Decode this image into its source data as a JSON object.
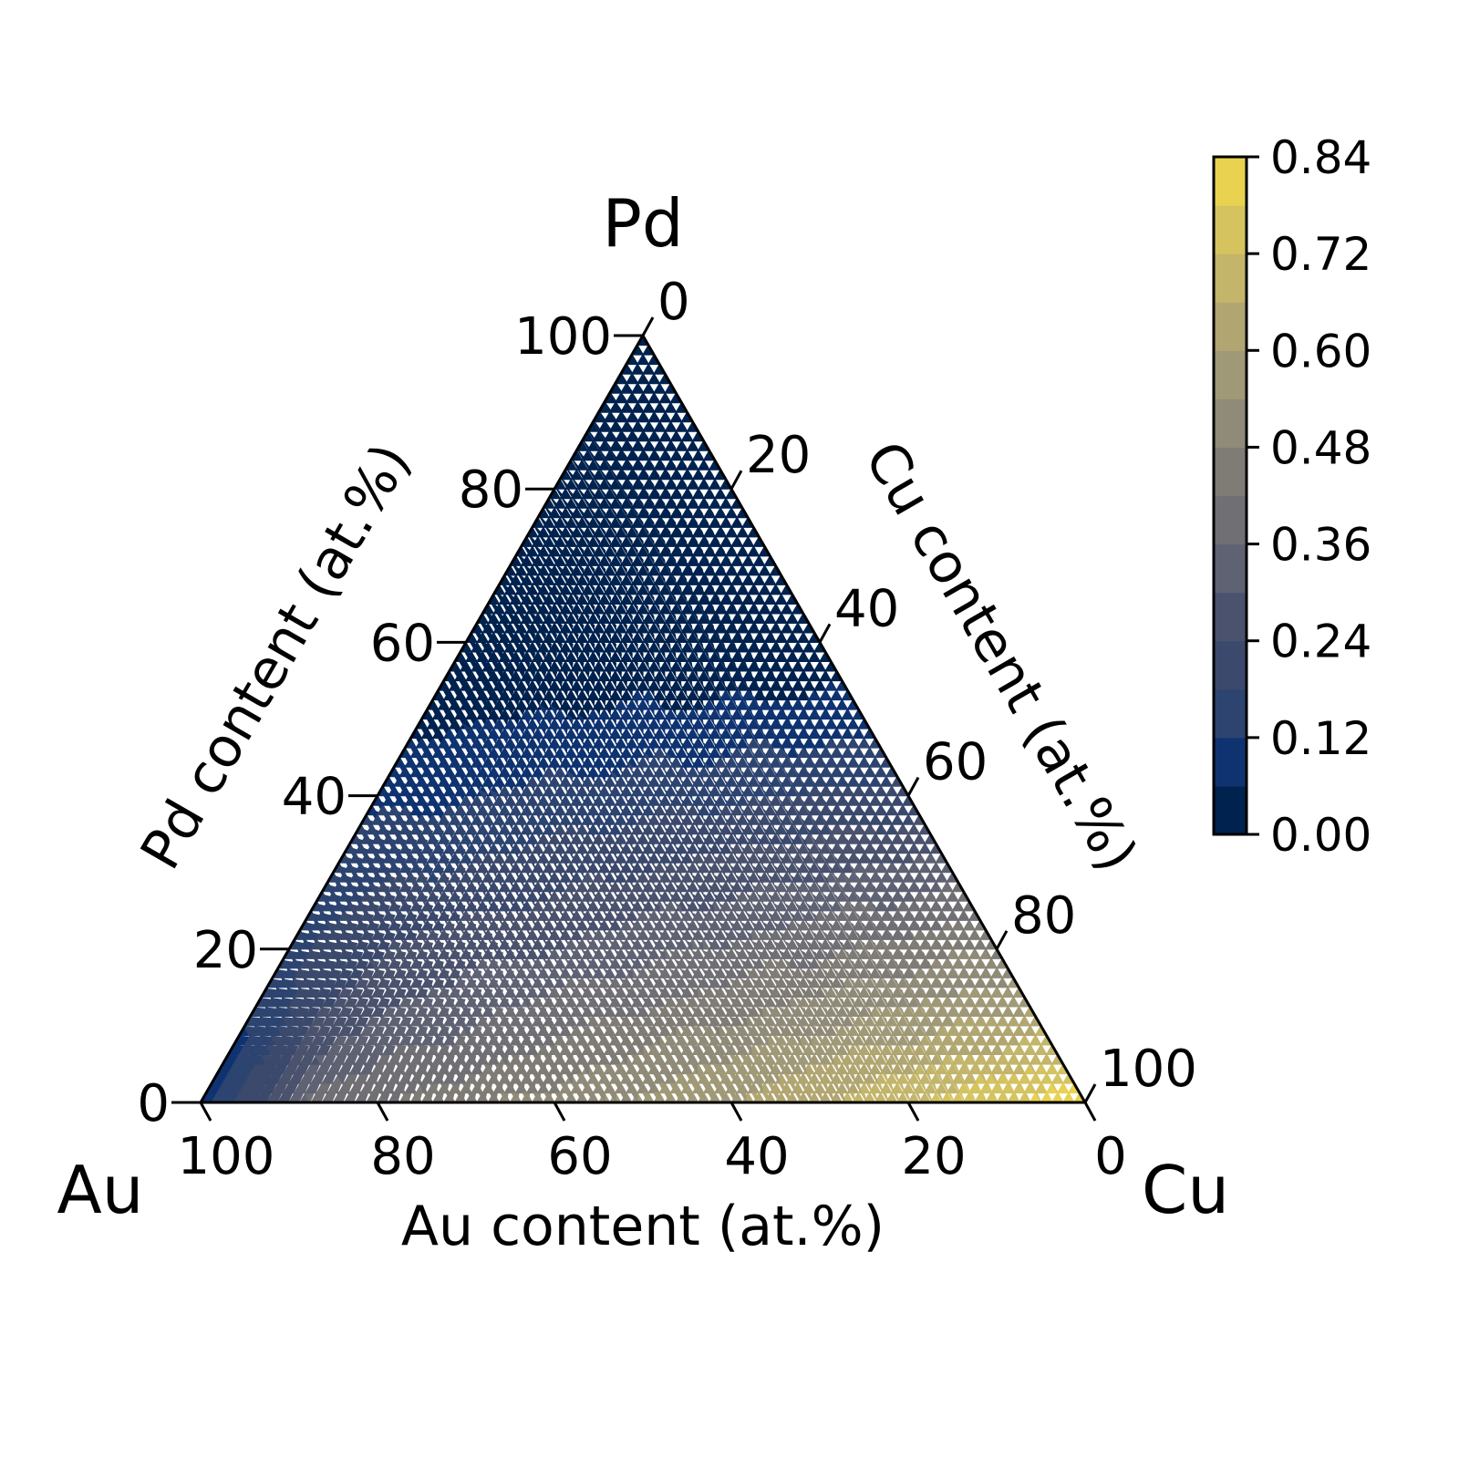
{
  "chart_data": {
    "type": "heatmap",
    "subtype": "ternary-filled-contour",
    "vertices": {
      "top": "Pd",
      "left": "Au",
      "right": "Cu"
    },
    "axes": {
      "bottom": {
        "label": "Au content (at.%)",
        "ticks": [
          "100",
          "80",
          "60",
          "40",
          "20",
          "0"
        ]
      },
      "left": {
        "label": "Pd content (at.%)",
        "ticks": [
          "0",
          "20",
          "40",
          "60",
          "80",
          "100"
        ]
      },
      "right": {
        "label": "Cu content (at.%)",
        "ticks": [
          "0",
          "20",
          "40",
          "60",
          "80",
          "100"
        ]
      }
    },
    "colorbar": {
      "range": [
        0.0,
        0.84
      ],
      "ticks": [
        "0.00",
        "0.12",
        "0.24",
        "0.36",
        "0.48",
        "0.60",
        "0.72",
        "0.84"
      ],
      "levels": [
        0.0,
        0.06,
        0.12,
        0.18,
        0.24,
        0.3,
        0.36,
        0.42,
        0.48,
        0.54,
        0.6,
        0.66,
        0.72,
        0.78,
        0.84
      ],
      "colormap": "cividis",
      "band_colors": [
        "#00224e",
        "#0f3370",
        "#2d4470",
        "#3b496c",
        "#4a526d",
        "#5e6273",
        "#6f6f74",
        "#7f7b75",
        "#908b78",
        "#a09977",
        "#b1a671",
        "#c3b56a",
        "#d4c35f",
        "#e8d250"
      ]
    },
    "field_samples": [
      {
        "Au": 100,
        "Pd": 0,
        "Cu": 0,
        "value": 0.02
      },
      {
        "Au": 80,
        "Pd": 20,
        "Cu": 0,
        "value": 0.3
      },
      {
        "Au": 60,
        "Pd": 40,
        "Cu": 0,
        "value": 0.2
      },
      {
        "Au": 40,
        "Pd": 60,
        "Cu": 0,
        "value": 0.08
      },
      {
        "Au": 0,
        "Pd": 100,
        "Cu": 0,
        "value": 0.02
      },
      {
        "Au": 60,
        "Pd": 10,
        "Cu": 30,
        "value": 0.6
      },
      {
        "Au": 30,
        "Pd": 10,
        "Cu": 60,
        "value": 0.72
      },
      {
        "Au": 0,
        "Pd": 0,
        "Cu": 100,
        "value": 0.82
      },
      {
        "Au": 0,
        "Pd": 20,
        "Cu": 80,
        "value": 0.72
      },
      {
        "Au": 0,
        "Pd": 40,
        "Cu": 60,
        "value": 0.42
      },
      {
        "Au": 0,
        "Pd": 60,
        "Cu": 40,
        "value": 0.1
      },
      {
        "Au": 20,
        "Pd": 30,
        "Cu": 50,
        "value": 0.4
      },
      {
        "Au": 40,
        "Pd": 30,
        "Cu": 30,
        "value": 0.3
      }
    ],
    "title": ""
  }
}
